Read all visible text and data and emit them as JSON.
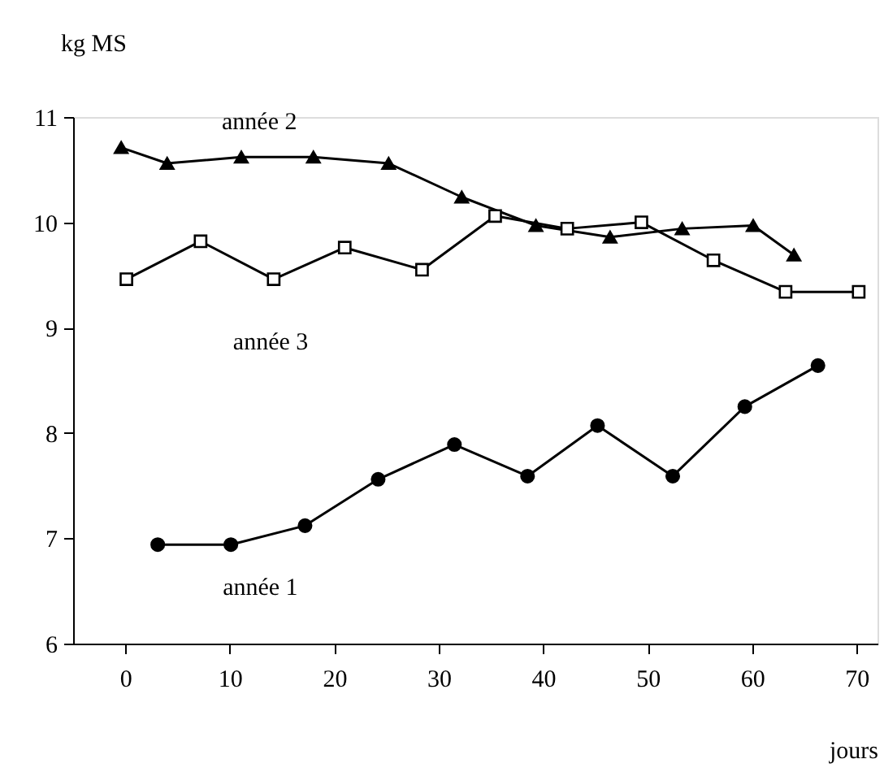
{
  "chart_data": {
    "type": "line",
    "xlabel": "jours",
    "ylabel": "kg MS",
    "xlim": [
      -5,
      72
    ],
    "ylim": [
      6,
      11
    ],
    "xticks": [
      0,
      10,
      20,
      30,
      40,
      50,
      60,
      70
    ],
    "yticks": [
      6,
      7,
      8,
      9,
      10,
      11
    ],
    "grid": false,
    "line_style": "solid",
    "series": [
      {
        "name": "année 1",
        "color": "#000000",
        "marker": "circle",
        "x": [
          3.1,
          10.1,
          17.2,
          24.2,
          31.5,
          38.5,
          45.2,
          52.4,
          59.3,
          66.3
        ],
        "values": [
          6.94,
          6.94,
          7.12,
          7.56,
          7.89,
          7.59,
          8.07,
          7.59,
          8.25,
          8.64
        ]
      },
      {
        "name": "année 2",
        "color": "#000000",
        "marker": "triangle",
        "x": [
          -0.4,
          4.0,
          11.1,
          18.0,
          25.2,
          32.2,
          39.3,
          46.4,
          53.3,
          60.1,
          64.0
        ],
        "values": [
          10.71,
          10.56,
          10.62,
          10.62,
          10.56,
          10.24,
          9.97,
          9.86,
          9.94,
          9.97,
          9.69
        ]
      },
      {
        "name": "année 3",
        "color": "#000000",
        "marker": "square",
        "x": [
          0.1,
          7.2,
          14.2,
          21.0,
          28.4,
          35.4,
          42.3,
          49.4,
          56.3,
          63.2,
          70.2
        ],
        "values": [
          9.46,
          9.82,
          9.46,
          9.76,
          9.55,
          10.06,
          9.94,
          10.0,
          9.64,
          9.34,
          9.34
        ]
      }
    ]
  }
}
